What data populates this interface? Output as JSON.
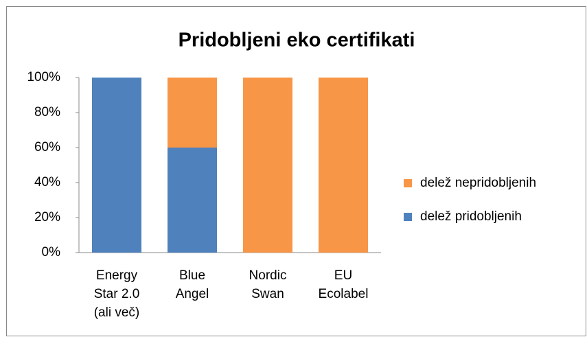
{
  "chart_data": {
    "type": "stacked_bar",
    "title": "Pridobljeni eko certifikati",
    "categories": [
      [
        "Energy",
        "Star 2.0",
        "(ali več)"
      ],
      [
        "Blue",
        "Angel"
      ],
      [
        "Nordic",
        "Swan"
      ],
      [
        "EU",
        "Ecolabel"
      ]
    ],
    "series": [
      {
        "name": "delež pridobljenih",
        "color": "#4f81bd",
        "values": [
          100,
          60,
          0,
          0
        ]
      },
      {
        "name": "delež nepridobljenih",
        "color": "#f79646",
        "values": [
          0,
          40,
          100,
          100
        ]
      }
    ],
    "ylim": [
      0,
      100
    ],
    "yticks": [
      {
        "value": 0,
        "label": "0%"
      },
      {
        "value": 20,
        "label": "20%"
      },
      {
        "value": 40,
        "label": "40%"
      },
      {
        "value": 60,
        "label": "60%"
      },
      {
        "value": 80,
        "label": "80%"
      },
      {
        "value": 100,
        "label": "100%"
      }
    ],
    "grid": false,
    "legend": "right"
  }
}
